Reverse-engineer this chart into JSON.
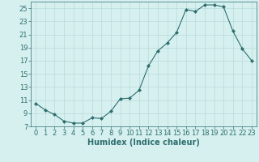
{
  "x": [
    0,
    1,
    2,
    3,
    4,
    5,
    6,
    7,
    8,
    9,
    10,
    11,
    12,
    13,
    14,
    15,
    16,
    17,
    18,
    19,
    20,
    21,
    22,
    23
  ],
  "y": [
    10.5,
    9.5,
    8.8,
    7.8,
    7.5,
    7.5,
    8.3,
    8.2,
    9.3,
    11.2,
    11.3,
    12.5,
    16.2,
    18.5,
    19.7,
    21.3,
    24.8,
    24.5,
    25.5,
    25.5,
    25.2,
    21.5,
    18.8,
    17.0
  ],
  "line_color": "#2d6e6e",
  "marker": "D",
  "marker_size": 2,
  "bg_color": "#d6f0ef",
  "grid_color": "#b8dada",
  "xlabel": "Humidex (Indice chaleur)",
  "xlabel_fontsize": 7,
  "tick_fontsize": 6,
  "xlim": [
    -0.5,
    23.5
  ],
  "ylim": [
    7,
    26
  ],
  "yticks": [
    7,
    9,
    11,
    13,
    15,
    17,
    19,
    21,
    23,
    25
  ],
  "xticks": [
    0,
    1,
    2,
    3,
    4,
    5,
    6,
    7,
    8,
    9,
    10,
    11,
    12,
    13,
    14,
    15,
    16,
    17,
    18,
    19,
    20,
    21,
    22,
    23
  ]
}
